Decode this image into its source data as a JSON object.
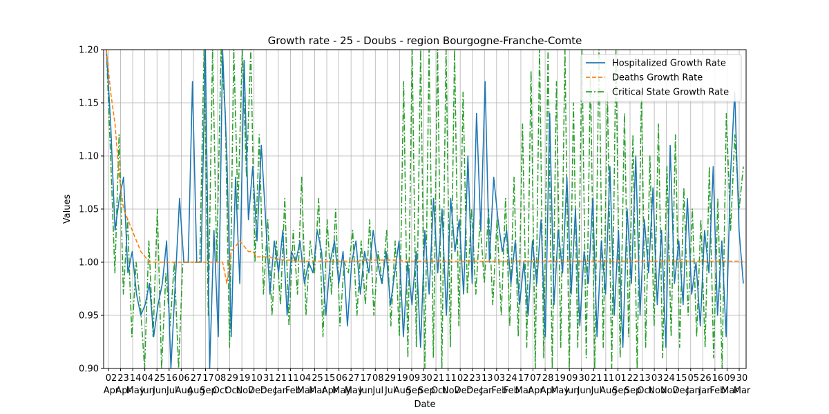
{
  "chart_data": {
    "type": "line",
    "title": "Growth rate - 25 - Doubs - region Bourgogne-Franche-Comte",
    "xlabel": "Date",
    "ylabel": "Values",
    "ylim": [
      0.9,
      1.2
    ],
    "yticks": [
      "0.90",
      "0.95",
      "1.00",
      "1.05",
      "1.10",
      "1.15",
      "1.20"
    ],
    "xticks": [
      {
        "day": "02",
        "month": "Apr"
      },
      {
        "day": "23",
        "month": "Apr"
      },
      {
        "day": "14",
        "month": "May"
      },
      {
        "day": "04",
        "month": "Jun"
      },
      {
        "day": "25",
        "month": "Jun"
      },
      {
        "day": "16",
        "month": "Jul"
      },
      {
        "day": "06",
        "month": "Aug"
      },
      {
        "day": "27",
        "month": "Aug"
      },
      {
        "day": "17",
        "month": "Sep"
      },
      {
        "day": "08",
        "month": "Oct"
      },
      {
        "day": "29",
        "month": "Oct"
      },
      {
        "day": "19",
        "month": "Nov"
      },
      {
        "day": "10",
        "month": "Dec"
      },
      {
        "day": "31",
        "month": "Dec"
      },
      {
        "day": "21",
        "month": "Jan"
      },
      {
        "day": "11",
        "month": "Feb"
      },
      {
        "day": "04",
        "month": "Mar"
      },
      {
        "day": "25",
        "month": "Mar"
      },
      {
        "day": "15",
        "month": "Apr"
      },
      {
        "day": "06",
        "month": "May"
      },
      {
        "day": "27",
        "month": "May"
      },
      {
        "day": "17",
        "month": "Jun"
      },
      {
        "day": "08",
        "month": "Jul"
      },
      {
        "day": "29",
        "month": "Jul"
      },
      {
        "day": "19",
        "month": "Aug"
      },
      {
        "day": "09",
        "month": "Sep"
      },
      {
        "day": "30",
        "month": "Sep"
      },
      {
        "day": "21",
        "month": "Oct"
      },
      {
        "day": "11",
        "month": "Nov"
      },
      {
        "day": "02",
        "month": "Dec"
      },
      {
        "day": "23",
        "month": "Dec"
      },
      {
        "day": "13",
        "month": "Jan"
      },
      {
        "day": "03",
        "month": "Feb"
      },
      {
        "day": "24",
        "month": "Feb"
      },
      {
        "day": "17",
        "month": "Mar"
      },
      {
        "day": "07",
        "month": "Apr"
      },
      {
        "day": "28",
        "month": "Apr"
      },
      {
        "day": "19",
        "month": "May"
      },
      {
        "day": "09",
        "month": "Jun"
      },
      {
        "day": "30",
        "month": "Jun"
      },
      {
        "day": "21",
        "month": "Jul"
      },
      {
        "day": "11",
        "month": "Aug"
      },
      {
        "day": "01",
        "month": "Sep"
      },
      {
        "day": "22",
        "month": "Sep"
      },
      {
        "day": "13",
        "month": "Oct"
      },
      {
        "day": "03",
        "month": "Nov"
      },
      {
        "day": "24",
        "month": "Nov"
      },
      {
        "day": "15",
        "month": "Dec"
      },
      {
        "day": "05",
        "month": "Jan"
      },
      {
        "day": "26",
        "month": "Jan"
      },
      {
        "day": "16",
        "month": "Feb"
      },
      {
        "day": "09",
        "month": "Mar"
      },
      {
        "day": "30",
        "month": "Mar"
      }
    ],
    "legend_position": "top-right",
    "grid": true,
    "series": [
      {
        "name": "Hospitalized Growth Rate",
        "color": "#1f77b4",
        "style": "solid",
        "values": [
          1.2,
          1.13,
          1.03,
          1.06,
          1.08,
          0.99,
          1.01,
          0.97,
          0.95,
          0.96,
          0.98,
          0.93,
          0.96,
          0.98,
          1.02,
          0.9,
          0.98,
          1.06,
          1.0,
          1.0,
          1.17,
          1.0,
          1.0,
          1.2,
          0.9,
          1.03,
          0.93,
          1.2,
          1.1,
          0.93,
          1.08,
          0.98,
          1.19,
          1.04,
          1.09,
          1.02,
          1.11,
          1.04,
          0.97,
          1.02,
          0.99,
          1.03,
          0.95,
          1.01,
          1.0,
          1.02,
          0.98,
          1.0,
          0.99,
          1.03,
          1.01,
          0.95,
          1.0,
          1.02,
          0.98,
          1.01,
          0.94,
          1.0,
          1.02,
          0.97,
          1.01,
          0.99,
          1.03,
          1.0,
          0.98,
          1.01,
          0.96,
          0.99,
          1.02,
          0.93,
          1.0,
          0.96,
          1.01,
          0.92,
          1.03,
          0.97,
          1.06,
          0.99,
          1.05,
          0.95,
          1.06,
          1.01,
          1.04,
          0.97,
          1.1,
          0.98,
          1.14,
          1.03,
          1.17,
          1.0,
          1.08,
          1.04,
          1.01,
          1.03,
          0.98,
          1.02,
          0.96,
          1.0,
          0.95,
          1.02,
          0.98,
          1.04,
          0.93,
          1.14,
          0.96,
          1.03,
          0.99,
          1.08,
          0.97,
          1.05,
          0.94,
          1.01,
          0.98,
          1.06,
          0.93,
          1.02,
          0.97,
          1.09,
          0.95,
          1.03,
          0.92,
          1.05,
          0.98,
          1.1,
          0.95,
          1.04,
          0.99,
          1.07,
          0.96,
          1.03,
          0.92,
          1.11,
          0.98,
          1.02,
          0.96,
          1.06,
          0.97,
          1.0,
          0.94,
          1.03,
          0.99,
          1.09,
          0.95,
          1.02,
          0.93,
          1.08,
          1.16,
          1.03,
          0.98
        ]
      },
      {
        "name": "Deaths Growth Rate",
        "color": "#ff7f0e",
        "style": "dashed",
        "values": [
          1.2,
          1.16,
          1.13,
          1.08,
          1.05,
          1.04,
          1.03,
          1.02,
          1.01,
          1.005,
          1.0,
          1.0,
          1.0,
          1.0,
          1.0,
          1.0,
          1.0,
          1.0,
          1.0,
          1.0,
          1.0,
          1.0,
          1.0,
          1.0,
          1.0,
          1.0,
          1.0,
          1.0,
          0.98,
          1.01,
          1.015,
          1.02,
          1.015,
          1.01,
          1.01,
          1.005,
          1.005,
          1.005,
          1.005,
          1.003,
          1.003,
          1.002,
          1.002,
          1.002,
          1.001,
          1.001,
          1.001,
          1.001,
          1.001,
          1.001,
          1.001,
          1.001,
          1.001,
          1.001,
          1.001,
          1.001,
          1.001,
          1.001,
          1.001,
          1.001,
          1.002,
          1.002,
          1.002,
          1.002,
          1.002,
          1.002,
          1.002,
          1.002,
          1.002,
          1.001,
          1.001,
          1.001,
          1.001,
          1.001,
          1.001,
          1.001,
          1.001,
          1.001,
          1.001,
          1.001,
          1.001,
          1.001,
          1.001,
          1.001,
          1.001,
          1.001,
          1.001,
          1.001,
          1.001,
          1.001,
          1.001,
          1.001,
          1.001,
          1.001,
          1.001,
          1.001,
          1.001,
          1.001,
          1.001,
          1.001,
          1.001,
          1.001,
          1.001,
          1.001,
          1.001,
          1.001,
          1.001,
          1.001,
          1.001,
          1.001,
          1.001,
          1.001,
          1.001,
          1.001,
          1.001,
          1.001,
          1.001,
          1.001,
          1.001,
          1.001,
          1.001,
          1.001,
          1.001,
          1.001,
          1.001,
          1.001,
          1.001,
          1.001,
          1.001,
          1.001,
          1.001,
          1.001,
          1.001,
          1.001,
          1.001,
          1.001,
          1.001,
          1.001,
          1.001,
          1.001,
          1.001,
          1.001,
          1.001,
          1.001,
          1.001,
          1.001,
          1.001,
          1.001,
          1.001
        ]
      },
      {
        "name": "Critical State Growth Rate",
        "color": "#2ca02c",
        "style": "dashdot",
        "values": [
          1.2,
          1.1,
          0.99,
          1.12,
          0.97,
          1.04,
          0.93,
          1.0,
          0.96,
          0.9,
          1.02,
          0.93,
          1.05,
          0.9,
          0.99,
          0.94,
          1.0,
          0.9,
          1.0,
          1.0,
          1.0,
          1.0,
          1.0,
          1.2,
          0.95,
          1.2,
          1.0,
          1.2,
          1.14,
          0.92,
          1.2,
          1.05,
          1.2,
          1.08,
          1.2,
          1.0,
          1.12,
          0.97,
          1.04,
          0.95,
          1.02,
          0.96,
          1.06,
          0.94,
          1.03,
          0.97,
          1.08,
          0.95,
          1.02,
          0.99,
          1.06,
          0.93,
          1.04,
          0.97,
          1.05,
          0.94,
          1.0,
          0.99,
          1.03,
          0.95,
          1.02,
          0.96,
          1.04,
          0.95,
          1.01,
          0.98,
          1.03,
          0.94,
          1.02,
          0.93,
          1.17,
          0.91,
          1.2,
          0.92,
          1.2,
          0.9,
          1.2,
          0.91,
          1.2,
          0.9,
          1.2,
          0.92,
          1.2,
          0.94,
          1.16,
          0.97,
          1.05,
          0.97,
          1.04,
          0.98,
          1.05,
          0.96,
          1.04,
          0.95,
          1.06,
          0.94,
          1.08,
          0.93,
          1.13,
          0.92,
          1.18,
          0.9,
          1.2,
          0.91,
          1.2,
          0.9,
          1.17,
          0.92,
          1.2,
          0.9,
          1.15,
          0.92,
          1.2,
          0.91,
          1.18,
          0.9,
          1.2,
          0.92,
          1.16,
          0.9,
          1.2,
          0.91,
          1.14,
          0.93,
          1.12,
          0.9,
          1.16,
          0.92,
          1.1,
          0.94,
          1.13,
          0.91,
          1.09,
          0.93,
          1.12,
          0.92,
          1.07,
          0.95,
          1.05,
          0.93,
          1.04,
          0.92,
          1.09,
          0.91,
          1.06,
          0.9,
          1.14,
          1.03,
          1.12,
          1.05,
          1.09
        ]
      }
    ]
  }
}
